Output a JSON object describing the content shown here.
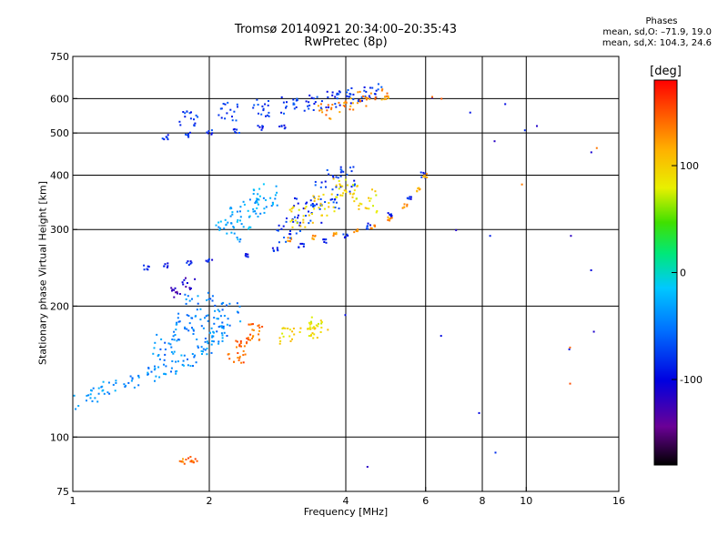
{
  "title": {
    "line1": "Tromsø 20140921 20:34:00–20:35:43",
    "line2": "RwPretec (8p)"
  },
  "stats": {
    "heading": "Phases",
    "line_o": "mean, sd,O: –71.9, 19.0",
    "line_x": "mean, sd,X: 104.3, 24.6"
  },
  "colorbar": {
    "unit": "[deg]",
    "ticks": [
      {
        "value": 100,
        "label": "100"
      },
      {
        "value": 0,
        "label": "0"
      },
      {
        "value": -100,
        "label": "-100"
      }
    ],
    "range": [
      -180,
      180
    ]
  },
  "chart_data": {
    "type": "scatter",
    "xscale": "log",
    "yscale": "log",
    "xlabel": "Frequency [MHz]",
    "ylabel": "Stationary phase Virtual Height [km]",
    "xlim": [
      1,
      16
    ],
    "ylim": [
      75,
      750
    ],
    "x_ticks": [
      {
        "v": 1,
        "label": "1"
      },
      {
        "v": 2,
        "label": "2"
      },
      {
        "v": 4,
        "label": "4"
      },
      {
        "v": 6,
        "label": "6"
      },
      {
        "v": 8,
        "label": "8"
      },
      {
        "v": 10,
        "label": "10"
      },
      {
        "v": 16,
        "label": "16"
      }
    ],
    "y_ticks": [
      {
        "v": 75,
        "label": "75"
      },
      {
        "v": 100,
        "label": "100"
      },
      {
        "v": 200,
        "label": "200"
      },
      {
        "v": 300,
        "label": "300"
      },
      {
        "v": 400,
        "label": "400"
      },
      {
        "v": 500,
        "label": "500"
      },
      {
        "v": 600,
        "label": "600"
      },
      {
        "v": 750,
        "label": "750"
      }
    ],
    "x_grid": [
      2,
      4,
      6,
      8,
      10
    ],
    "y_grid": [
      100,
      200,
      300,
      400,
      500,
      600
    ],
    "color_by": "phase [deg]",
    "groups": [
      {
        "desc": "F2 O-mode trace",
        "x": [
          1.45,
          1.6,
          1.8,
          2.0,
          2.4,
          2.8,
          3.2,
          3.6,
          4.0,
          4.5,
          5.0,
          5.5,
          5.9
        ],
        "y": [
          245,
          248,
          252,
          256,
          262,
          268,
          275,
          283,
          292,
          305,
          325,
          355,
          400
        ],
        "phase": -90,
        "spread": 0.02
      },
      {
        "desc": "F2 X-mode trace",
        "x": [
          3.0,
          3.4,
          3.8,
          4.2,
          4.6,
          5.0,
          5.4,
          5.8,
          6.0
        ],
        "y": [
          285,
          288,
          292,
          298,
          305,
          318,
          340,
          370,
          400
        ],
        "phase": 125,
        "spread": 0.015
      },
      {
        "desc": "multiple-hop O trace",
        "x": [
          1.6,
          1.8,
          2.0,
          2.3,
          2.6,
          2.9
        ],
        "y": [
          490,
          495,
          500,
          505,
          512,
          520
        ],
        "phase": -85,
        "spread": 0.02
      },
      {
        "desc": "upper echoes",
        "x": [
          1.8,
          2.2,
          2.6,
          3.0,
          3.4,
          3.8,
          4.2,
          4.6
        ],
        "y": [
          540,
          560,
          570,
          580,
          590,
          600,
          610,
          620
        ],
        "phase": -80,
        "spread": 0.06
      },
      {
        "desc": "upper X echoes",
        "x": [
          3.6,
          4.0,
          4.4,
          4.8
        ],
        "y": [
          560,
          580,
          600,
          610
        ],
        "phase": 130,
        "spread": 0.05
      },
      {
        "desc": "low layer trace",
        "x": [
          1.0,
          1.1,
          1.2,
          1.35,
          1.5,
          1.65,
          1.8,
          1.95,
          2.1
        ],
        "y": [
          120,
          125,
          130,
          135,
          140,
          145,
          150,
          160,
          175
        ],
        "phase": -40,
        "spread": 0.05
      },
      {
        "desc": "E region cluster",
        "x": [
          1.6,
          1.75,
          1.9,
          2.05,
          2.2
        ],
        "y": [
          160,
          180,
          200,
          175,
          190
        ],
        "phase": -45,
        "spread": 0.09
      },
      {
        "desc": "sporadic cluster",
        "x": [
          2.3,
          2.4,
          2.5
        ],
        "y": [
          155,
          165,
          175
        ],
        "phase": 140,
        "spread": 0.06
      },
      {
        "desc": "dark patch",
        "x": [
          1.7,
          1.8
        ],
        "y": [
          215,
          225
        ],
        "phase": -120,
        "spread": 0.04
      },
      {
        "desc": "spread F block 1",
        "x": [
          2.2,
          2.35,
          2.5,
          2.65
        ],
        "y": [
          300,
          320,
          340,
          360
        ],
        "phase": -30,
        "spread": 0.08
      },
      {
        "desc": "spread F block 2",
        "x": [
          3.0,
          3.3,
          3.6,
          3.9
        ],
        "y": [
          300,
          330,
          360,
          390
        ],
        "phase": -80,
        "spread": 0.09
      },
      {
        "desc": "spread F X block",
        "x": [
          3.2,
          3.6,
          4.0,
          4.4
        ],
        "y": [
          320,
          340,
          370,
          350
        ],
        "phase": 90,
        "spread": 0.08
      },
      {
        "desc": "low X cluster",
        "x": [
          3.0,
          3.3,
          3.5
        ],
        "y": [
          170,
          175,
          180
        ],
        "phase": 90,
        "spread": 0.06
      },
      {
        "desc": "bottom echoes",
        "x": [
          1.75,
          1.8,
          1.85
        ],
        "y": [
          88,
          89,
          88
        ],
        "phase": 140,
        "spread": 0.02
      },
      {
        "desc": "isolated",
        "x": [
          6.2,
          7.5,
          8.3,
          8.5,
          9.0,
          10.0,
          10.5,
          12.5,
          12.5,
          14.0,
          14.0,
          14.0,
          6.5,
          7.0,
          4.0,
          4.5,
          7.9,
          8.5
        ],
        "y": [
          600,
          560,
          290,
          480,
          580,
          510,
          520,
          290,
          160,
          240,
          175,
          450,
          170,
          300,
          190,
          85,
          113,
          92
        ],
        "phase": -100,
        "spread": 0.01
      },
      {
        "desc": "isolated X",
        "x": [
          6.2,
          9.8,
          12.5,
          14.2,
          12.4,
          6.5
        ],
        "y": [
          610,
          380,
          160,
          460,
          133,
          600
        ],
        "phase": 140,
        "spread": 0.01
      }
    ]
  }
}
